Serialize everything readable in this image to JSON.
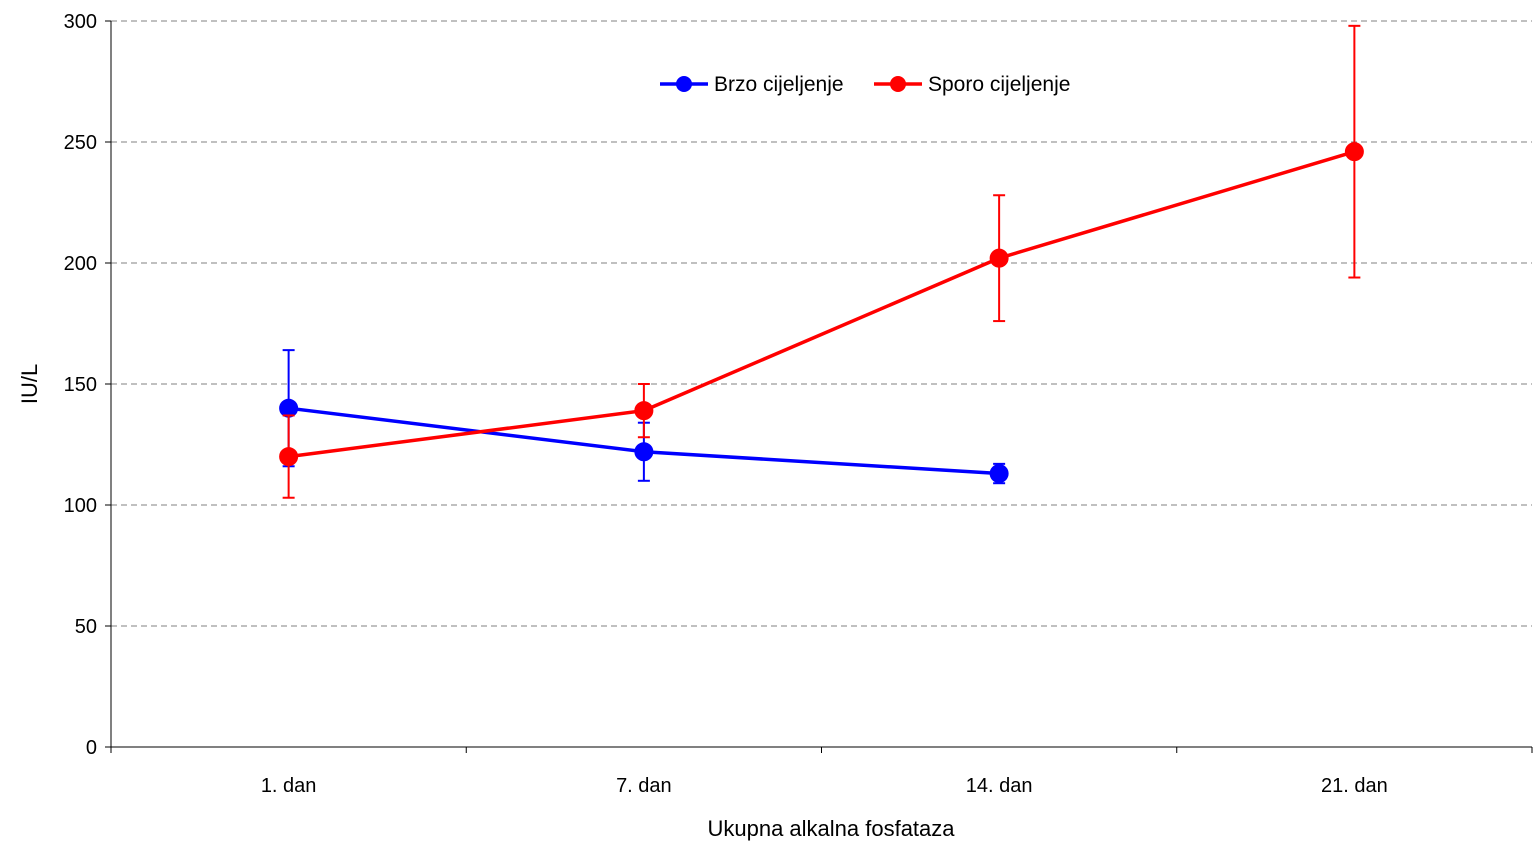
{
  "chart_data": {
    "type": "line",
    "title": "",
    "xlabel": "Ukupna alkalna fosfataza",
    "ylabel": "IU/L",
    "categories": [
      "1. dan",
      "7. dan",
      "14. dan",
      "21. dan"
    ],
    "ylim": [
      0,
      300
    ],
    "yticks": [
      0,
      50,
      100,
      150,
      200,
      250,
      300
    ],
    "grid": "horizontal dashed",
    "legend_position": "top-center",
    "series": [
      {
        "name": "Brzo cijeljenje",
        "color": "#0000ff",
        "values": [
          140,
          122,
          113,
          null
        ],
        "err_low": [
          116,
          110,
          109,
          null
        ],
        "err_high": [
          164,
          134,
          117,
          null
        ]
      },
      {
        "name": "Sporo cijeljenje",
        "color": "#ff0000",
        "values": [
          120,
          139,
          202,
          246
        ],
        "err_low": [
          103,
          128,
          176,
          194
        ],
        "err_high": [
          137,
          150,
          228,
          298
        ]
      }
    ]
  }
}
